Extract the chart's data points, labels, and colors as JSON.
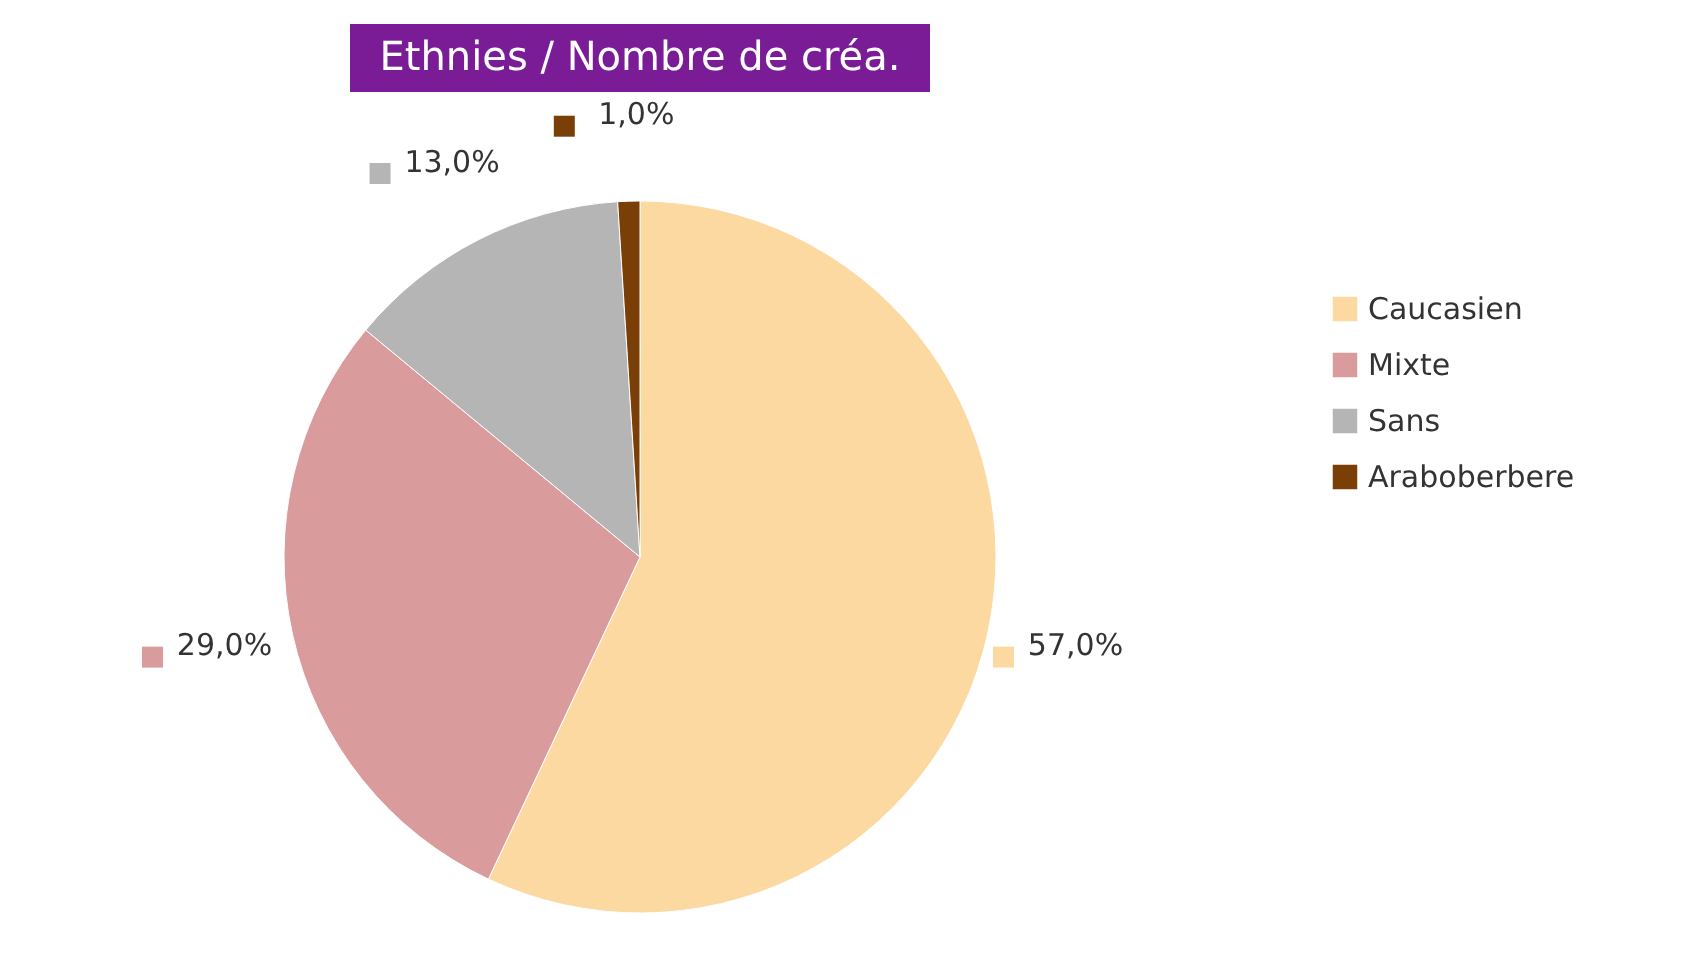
{
  "chart_data": {
    "type": "pie",
    "title": "Ethnies / Nombre de créa.",
    "categories": [
      "Caucasien",
      "Mixte",
      "Sans",
      "Araboberbere"
    ],
    "values": [
      57,
      29,
      13,
      1
    ],
    "colors": [
      "#fdd9a2",
      "#d99b9b",
      "#b5b5b5",
      "#7a3f06"
    ],
    "value_labels": [
      "57,0%",
      "29,0%",
      "13,0%",
      "1,0%"
    ],
    "legend": "right"
  }
}
